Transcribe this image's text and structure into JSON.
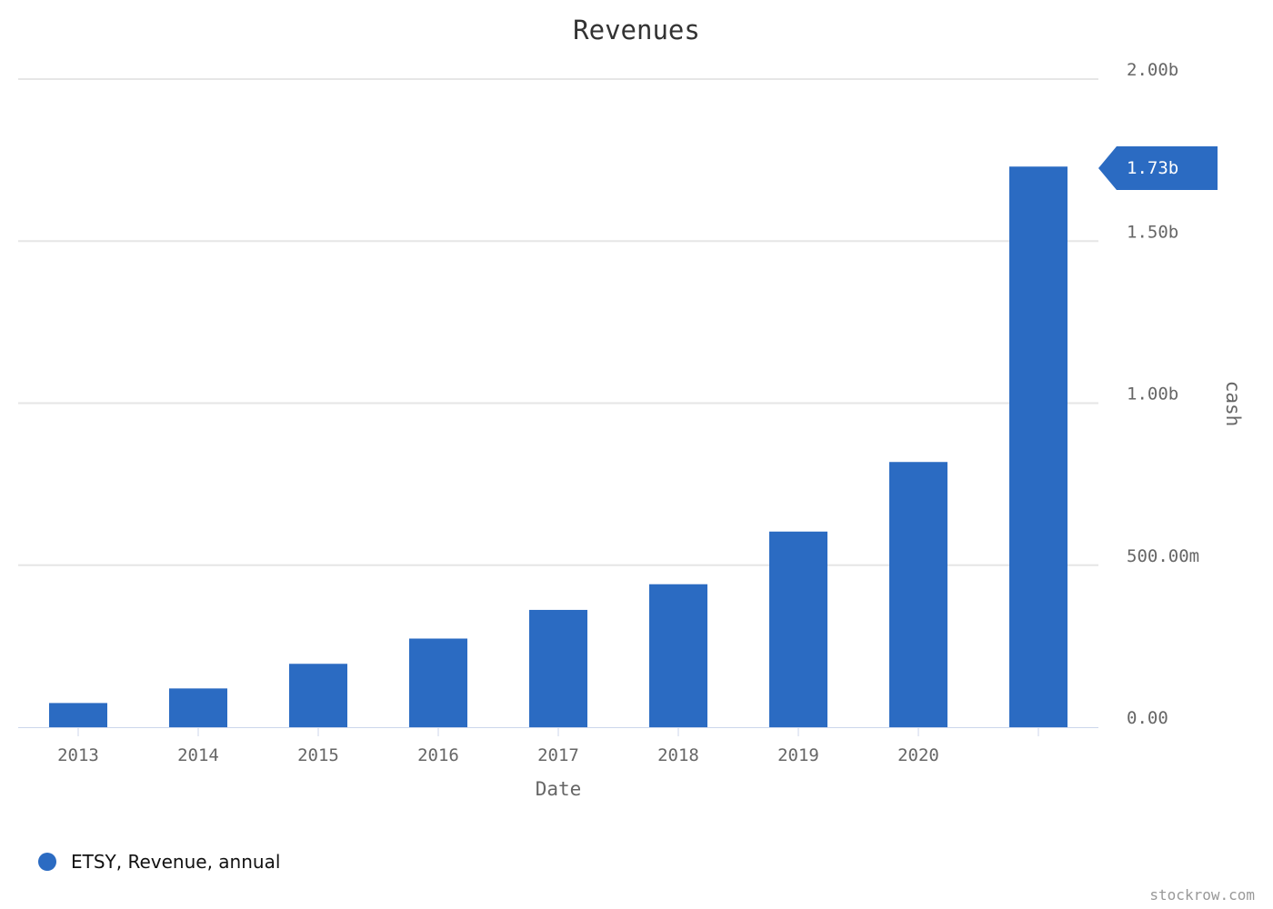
{
  "chart_data": {
    "type": "bar",
    "title": "Revenues",
    "xlabel": "Date",
    "ylabel": "cash",
    "categories": [
      "2013",
      "2014",
      "2015",
      "2016",
      "2017",
      "2018",
      "2019",
      "2020",
      ""
    ],
    "series": [
      {
        "name": "ETSY, Revenue, annual",
        "color": "#2b6bc2",
        "values": [
          74600000,
          119600000,
          195600000,
          273500000,
          362000000,
          441200000,
          603700000,
          818400000,
          1730000000
        ]
      }
    ],
    "ylim": [
      0,
      2000000000
    ],
    "y_ticks": [
      {
        "value": 0,
        "label": "0.00"
      },
      {
        "value": 500000000,
        "label": "500.00m"
      },
      {
        "value": 1000000000,
        "label": "1.00b"
      },
      {
        "value": 1500000000,
        "label": "1.50b"
      },
      {
        "value": 2000000000,
        "label": "2.00b"
      }
    ],
    "y_axis_side": "right",
    "grid": true,
    "legend_position": "bottom-left",
    "last_value_badge": {
      "value": 1730000000,
      "label": "1.73b"
    }
  },
  "credit": "stockrow.com"
}
